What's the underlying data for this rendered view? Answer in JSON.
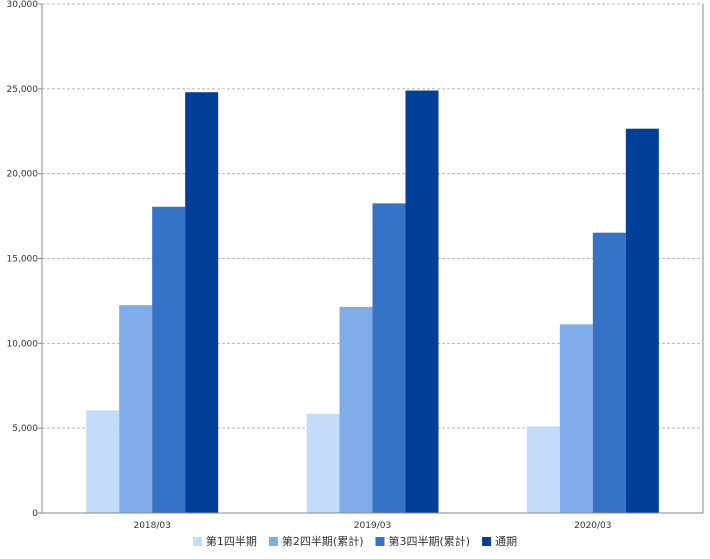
{
  "chart_data": {
    "type": "bar",
    "title": "",
    "xlabel": "",
    "ylabel": "",
    "categories": [
      "2018/03",
      "2019/03",
      "2020/03"
    ],
    "ylim": [
      0,
      30000
    ],
    "yticks": [
      0,
      5000,
      10000,
      15000,
      20000,
      25000,
      30000
    ],
    "ytick_labels": [
      "0",
      "5,000",
      "10,000",
      "15,000",
      "20,000",
      "25,000",
      "30,000"
    ],
    "grid": true,
    "legend_position": "bottom",
    "series": [
      {
        "name": "第1四半期",
        "color": "#c4dcfc",
        "values": [
          6050,
          5850,
          5100
        ]
      },
      {
        "name": "第2四半期(累計)",
        "color": "#80acea",
        "values": [
          12250,
          12150,
          11120
        ]
      },
      {
        "name": "第3四半期(累計)",
        "color": "#3672c6",
        "values": [
          18050,
          18250,
          16520
        ]
      },
      {
        "name": "通期",
        "color": "#003f98",
        "values": [
          24800,
          24900,
          22650
        ]
      }
    ]
  }
}
